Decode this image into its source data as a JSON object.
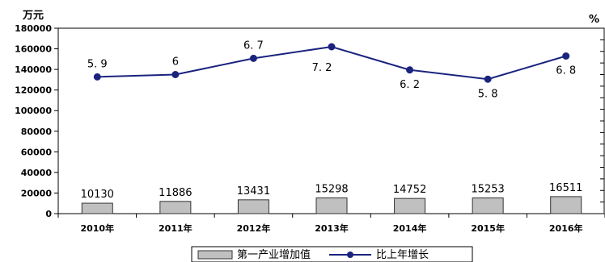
{
  "chart_data": {
    "type": "bar",
    "categories": [
      "2010年",
      "2011年",
      "2012年",
      "2013年",
      "2014年",
      "2015年",
      "2016年"
    ],
    "series": [
      {
        "name": "第一产业增加值",
        "type": "bar",
        "axis": "left",
        "values": [
          10130,
          11886,
          13431,
          15298,
          14752,
          15253,
          16511
        ],
        "labels": [
          "10130",
          "11886",
          "13431",
          "15298",
          "14752",
          "15253",
          "16511"
        ],
        "color": "#c0c0c0"
      },
      {
        "name": "比上年增长",
        "type": "line",
        "axis": "right",
        "values": [
          5.9,
          6.0,
          6.7,
          7.2,
          6.2,
          5.8,
          6.8
        ],
        "labels": [
          "5. 9",
          "6",
          "6. 7",
          "7. 2",
          "6. 2",
          "5. 8",
          "6. 8"
        ],
        "color": "#1a237e"
      }
    ],
    "ylabel": "万元",
    "y2label": "%",
    "ylim": [
      0,
      180000
    ],
    "yticks": [
      "0",
      "20000",
      "40000",
      "60000",
      "80000",
      "100000",
      "120000",
      "140000",
      "160000",
      "180000"
    ],
    "y2lim": [
      0,
      8
    ],
    "grid": false,
    "legend_position": "bottom"
  }
}
